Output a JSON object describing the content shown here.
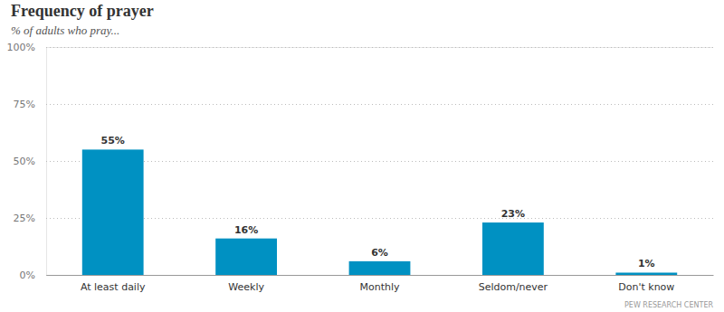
{
  "chart_data": {
    "type": "bar",
    "title": "Frequency of prayer",
    "subtitle": "% of adults who pray...",
    "source": "PEW RESEARCH CENTER",
    "categories": [
      "At least daily",
      "Weekly",
      "Monthly",
      "Seldom/never",
      "Don't know"
    ],
    "values": [
      55,
      16,
      6,
      23,
      1
    ],
    "value_labels": [
      "55%",
      "16%",
      "6%",
      "23%",
      "1%"
    ],
    "color": "#0091c2",
    "ylim": [
      0,
      100
    ],
    "yticks": [
      {
        "value": 0,
        "label": "0%"
      },
      {
        "value": 25,
        "label": "25%"
      },
      {
        "value": 50,
        "label": "50%"
      },
      {
        "value": 75,
        "label": "75%"
      },
      {
        "value": 100,
        "label": "100%"
      }
    ],
    "grid": true,
    "data_labels": true
  }
}
